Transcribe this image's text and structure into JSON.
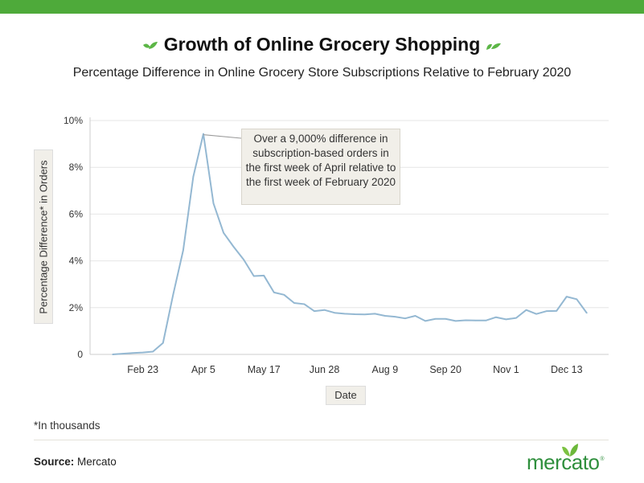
{
  "title": "Growth of Online Grocery Shopping",
  "subtitle": "Percentage Difference in Online Grocery Store Subscriptions Relative to February 2020",
  "footnote": "*In thousands",
  "source": {
    "label": "Source:",
    "value": "Mercato"
  },
  "logo": {
    "text": "mercato",
    "registered": "®"
  },
  "colors": {
    "topbar": "#4eaa3a",
    "line": "#94b8d2",
    "leaf": "#5cb646",
    "logo": "#2f8f3d"
  },
  "chart_data": {
    "type": "line",
    "title": "Growth of Online Grocery Shopping",
    "subtitle": "Percentage Difference in Online Grocery Store Subscriptions Relative to February 2020",
    "xlabel": "Date",
    "ylabel": "Percentage Difference* in Orders",
    "ylim": [
      0,
      10
    ],
    "y_ticks": [
      "0",
      "2%",
      "4%",
      "6%",
      "8%",
      "10%"
    ],
    "x_ticks": [
      "Feb 23",
      "Apr 5",
      "May 17",
      "Jun 28",
      "Aug 9",
      "Sep 20",
      "Nov 1",
      "Dec 13"
    ],
    "grid": true,
    "annotation": "Over a 9,000% difference in subscription-based orders in the first week of April relative to the first week of February 2020",
    "x": [
      "Feb 2",
      "Feb 9",
      "Feb 16",
      "Feb 23",
      "Mar 1",
      "Mar 8",
      "Mar 15",
      "Mar 22",
      "Mar 29",
      "Apr 5",
      "Apr 12",
      "Apr 19",
      "Apr 26",
      "May 3",
      "May 10",
      "May 17",
      "May 24",
      "May 31",
      "Jun 7",
      "Jun 14",
      "Jun 21",
      "Jun 28",
      "Jul 5",
      "Jul 12",
      "Jul 19",
      "Jul 26",
      "Aug 2",
      "Aug 9",
      "Aug 16",
      "Aug 23",
      "Aug 30",
      "Sep 6",
      "Sep 13",
      "Sep 20",
      "Sep 27",
      "Oct 4",
      "Oct 11",
      "Oct 18",
      "Oct 25",
      "Nov 1",
      "Nov 8",
      "Nov 15",
      "Nov 22",
      "Nov 29",
      "Dec 6",
      "Dec 13",
      "Dec 20",
      "Dec 27"
    ],
    "values": [
      0,
      0.03,
      0.06,
      0.08,
      0.12,
      0.49,
      2.55,
      4.45,
      7.6,
      9.43,
      6.46,
      5.2,
      4.6,
      4.05,
      3.35,
      3.37,
      2.65,
      2.55,
      2.2,
      2.15,
      1.85,
      1.9,
      1.78,
      1.74,
      1.72,
      1.71,
      1.74,
      1.65,
      1.61,
      1.54,
      1.65,
      1.43,
      1.52,
      1.52,
      1.43,
      1.46,
      1.45,
      1.45,
      1.59,
      1.5,
      1.56,
      1.9,
      1.73,
      1.85,
      1.86,
      2.47,
      2.36,
      1.77
    ]
  }
}
